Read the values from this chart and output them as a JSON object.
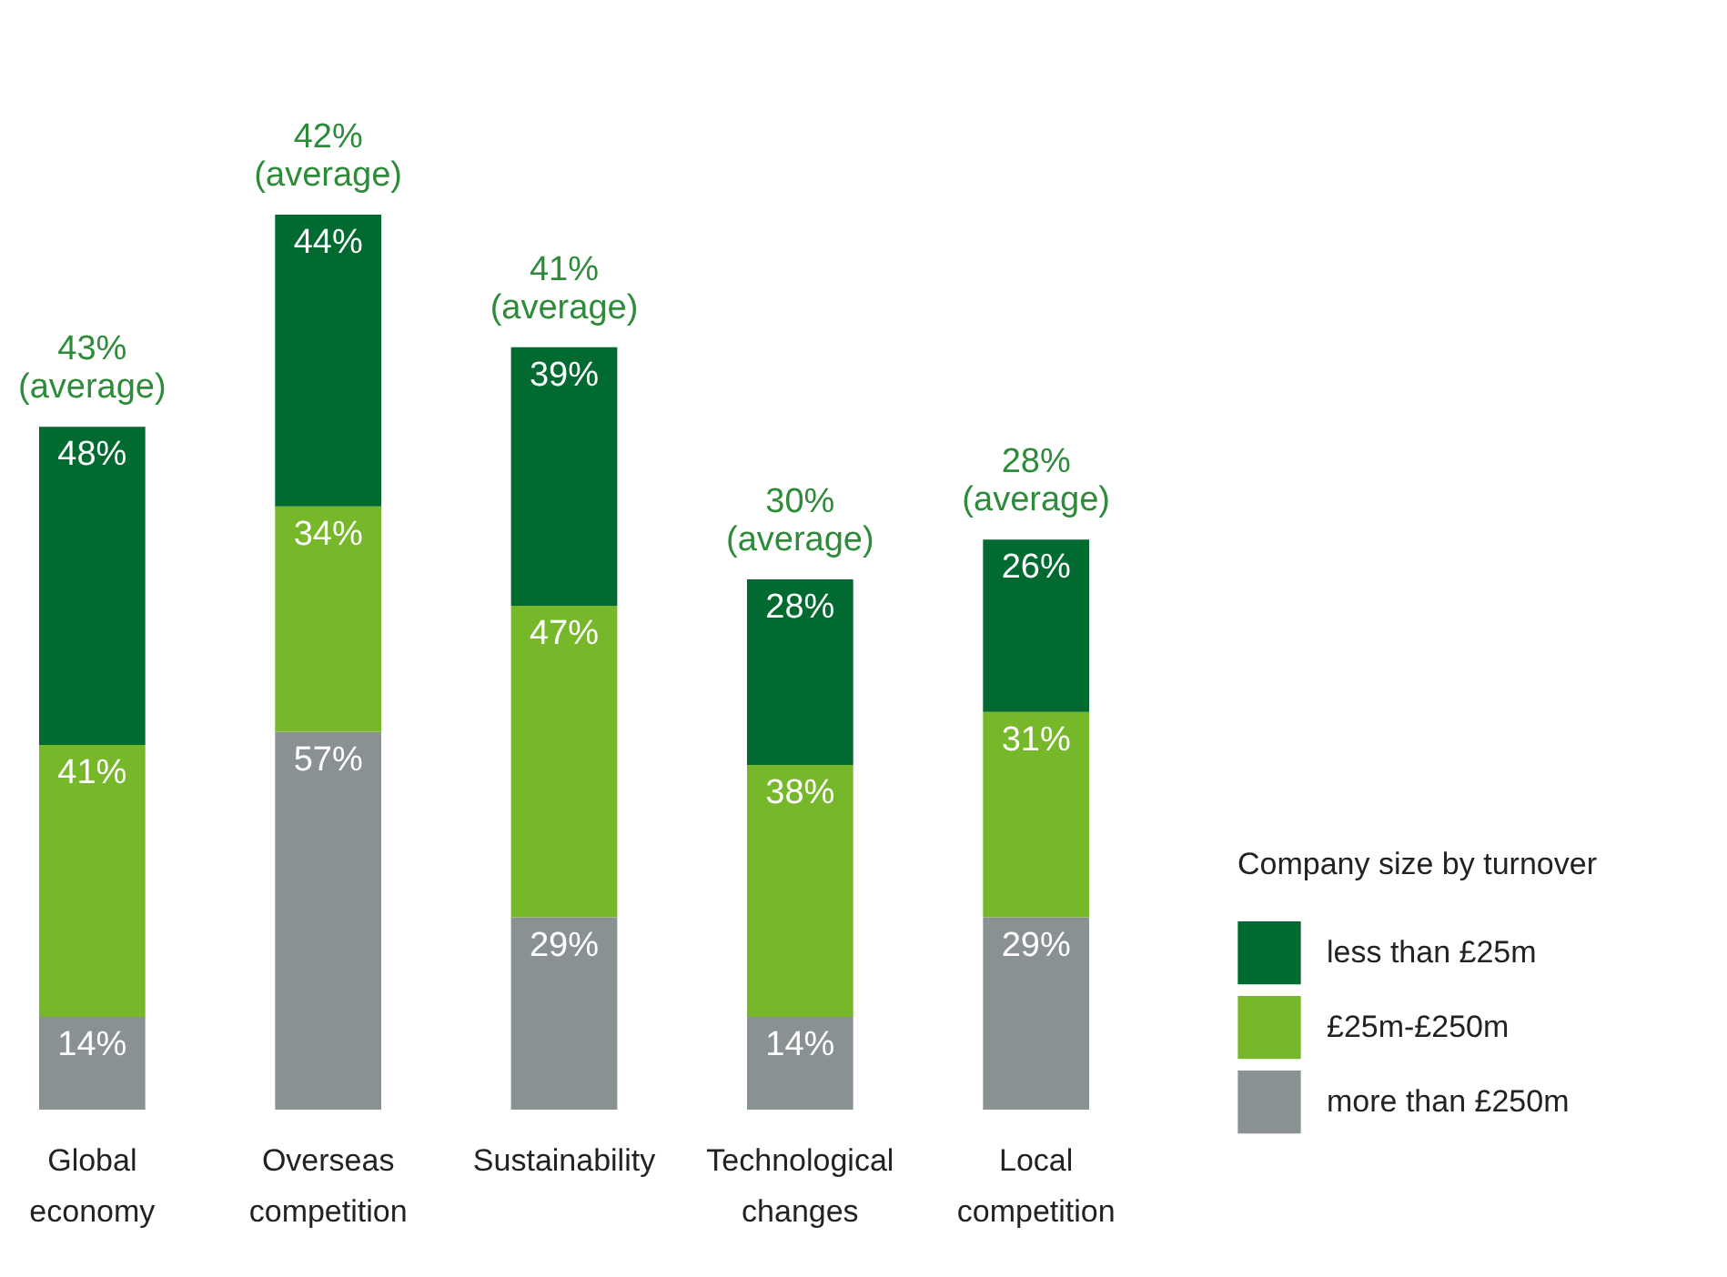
{
  "chart_data": {
    "type": "bar",
    "stacked": true,
    "legend": "right",
    "legend_title": "Company size by turnover",
    "categories": [
      "Global economy",
      "Overseas competition",
      "Sustainability",
      "Technological changes",
      "Local competition"
    ],
    "series": [
      {
        "name": "more than £250m",
        "color": "#8a9193",
        "values": [
          14,
          57,
          29,
          14,
          29
        ],
        "value_labels": [
          "14%",
          "57%",
          "29%",
          "14%",
          "29%"
        ]
      },
      {
        "name": "£25m-£250m",
        "color": "#76b82a",
        "values": [
          41,
          34,
          47,
          38,
          31
        ],
        "value_labels": [
          "41%",
          "34%",
          "47%",
          "38%",
          "31%"
        ]
      },
      {
        "name": "less than £25m",
        "color": "#006a30",
        "values": [
          48,
          44,
          39,
          28,
          26
        ],
        "value_labels": [
          "48%",
          "44%",
          "39%",
          "28%",
          "26%"
        ]
      }
    ],
    "annotations": [
      "43%\n(average)",
      "42%\n(average)",
      "41%\n(average)",
      "30%\n(average)",
      "28%\n(average)"
    ]
  }
}
